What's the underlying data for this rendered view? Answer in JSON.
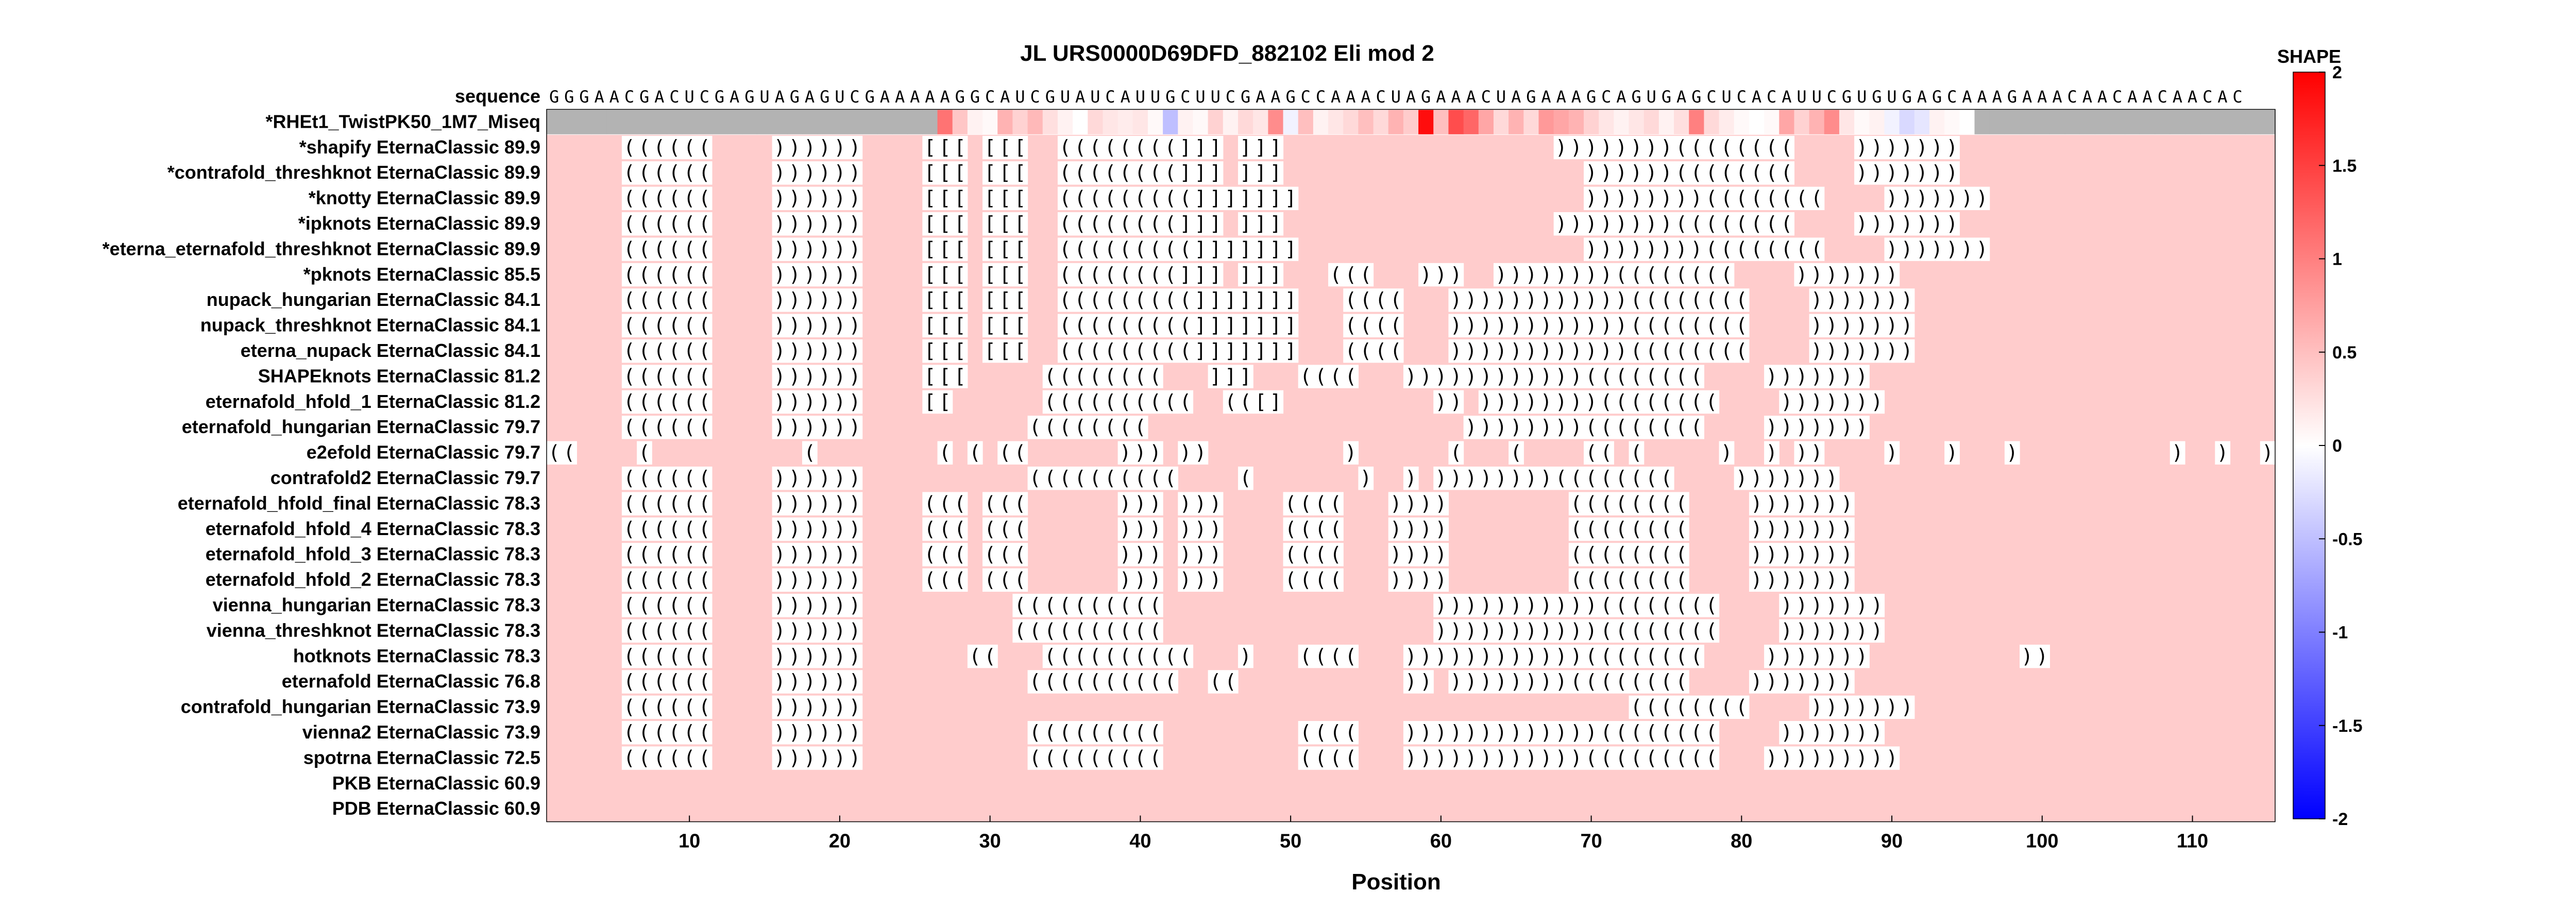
{
  "chart_data": {
    "type": "heatmap",
    "title": "JL URS0000D69DFD_882102 Eli mod 2",
    "xlabel": "Position",
    "x_range": [
      1,
      115
    ],
    "x_ticks": [
      10,
      20,
      30,
      40,
      50,
      60,
      70,
      80,
      90,
      100,
      110
    ],
    "sequence_label": "sequence",
    "sequence": "GGGAACGACUCGAGUAGAGUCGAAAAAGGCAUCGUAUCAUUGCUUCGAAGCCAAACUAGAAACUAGAAAGCAGUGAGCUCACAUUCGUGUGAGCAAAGAAACAACAACAACAC",
    "reactivity_row_label": "*RHEt1_TwistPK50_1M7_Miseq",
    "reactivity_data_range": [
      27,
      95
    ],
    "reactivity": [
      0.0,
      0.0,
      0.0,
      0.0,
      0.0,
      0.0,
      0.0,
      0.0,
      0.0,
      0.0,
      0.0,
      0.0,
      0.0,
      0.0,
      0.0,
      0.0,
      0.0,
      0.0,
      0.0,
      0.0,
      0.0,
      0.0,
      0.0,
      0.0,
      0.0,
      0.0,
      1.1,
      0.45,
      0.1,
      0.05,
      0.6,
      0.35,
      0.55,
      0.25,
      0.1,
      0.0,
      0.3,
      0.2,
      0.15,
      0.2,
      0.05,
      -0.5,
      0.1,
      0.05,
      0.35,
      0.1,
      0.3,
      0.2,
      0.9,
      -0.1,
      0.5,
      0.1,
      0.2,
      0.3,
      0.5,
      0.3,
      0.6,
      0.4,
      1.9,
      0.5,
      1.4,
      1.2,
      0.7,
      0.3,
      0.6,
      0.3,
      0.8,
      0.7,
      0.6,
      0.35,
      0.2,
      0.1,
      0.2,
      0.3,
      0.1,
      0.25,
      1.0,
      0.3,
      0.15,
      0.05,
      0.0,
      0.05,
      0.7,
      0.35,
      0.6,
      0.9,
      0.2,
      0.05,
      0.1,
      -0.1,
      -0.3,
      -0.2,
      0.1,
      0.05,
      0.0,
      0.0,
      0.0,
      0.0,
      0.0,
      0.0,
      0.0,
      0.0,
      0.0,
      0.0,
      0.0,
      0.0,
      0.0,
      0.0,
      0.0,
      0.0,
      0.0,
      0.0,
      0.0,
      0.0,
      0.0
    ],
    "structure_rows": [
      {
        "label": "*shapify EternaClassic",
        "score": "89.9",
        "structure": ".....((((((....))))))....[[[.[[[..((((((((]]].]]]..................))))))))((((((((....)))))))................................"
      },
      {
        "label": "*contrafold_threshknot EternaClassic",
        "score": "89.9",
        "structure": ".....((((((....))))))....[[[.[[[..((((((((]]].]]]....................))))))((((((((....)))))))................................"
      },
      {
        "label": "*knotty EternaClassic",
        "score": "89.9",
        "structure": ".....((((((....))))))....[[[.[[[..(((((((((]]]]]]]...................))))))))((((((((....)))))))................................"
      },
      {
        "label": "*ipknots EternaClassic",
        "score": "89.9",
        "structure": ".....((((((....))))))....[[[.[[[..((((((((]]].]]]..................))))))))((((((((....)))))))................................"
      },
      {
        "label": "*eterna_eternafold_threshknot EternaClassic",
        "score": "89.9",
        "structure": ".....((((((....))))))....[[[.[[[..(((((((((]]]]]]]...................))))))))((((((((....)))))))................................"
      },
      {
        "label": "*pknots EternaClassic",
        "score": "85.5",
        "structure": ".....((((((....))))))....[[[.[[[..((((((((]]].]]]...(((...)))..))))))))((((((((....)))))))................................"
      },
      {
        "label": "nupack_hungarian EternaClassic",
        "score": "84.1",
        "structure": ".....((((((....))))))....[[[.[[[..(((((((((]]]]]]]...((((...))))))))))))((((((((....)))))))................................"
      },
      {
        "label": "nupack_threshknot EternaClassic",
        "score": "84.1",
        "structure": ".....((((((....))))))....[[[.[[[..(((((((((]]]]]]]...((((...))))))))))))((((((((....)))))))................................"
      },
      {
        "label": "eterna_nupack EternaClassic",
        "score": "84.1",
        "structure": ".....((((((....))))))....[[[.[[[..(((((((((]]]]]]]...((((...))))))))))))((((((((....)))))))................................"
      },
      {
        "label": "SHAPEknots EternaClassic",
        "score": "81.2",
        "structure": ".....((((((....))))))....[[[.....((((((((...]]]...((((...))))))))))))((((((((....)))))))................................"
      },
      {
        "label": "eternafold_hfold_1 EternaClassic",
        "score": "81.2",
        "structure": ".....((((((....))))))....[[......((((((((((..(([]..........)).))))))))((((((((....)))))))................................"
      },
      {
        "label": "eternafold_hungarian EternaClassic",
        "score": "79.7",
        "structure": ".....((((((....))))))...........((((((((.....................))))))))((((((((....)))))))................................"
      },
      {
        "label": "e2efold EternaClassic",
        "score": "79.7",
        "structure": "((....(..........(........(.(.((......))).)).........)......(...(....((.(.....)..).))....)...)...)..........)..)..)"
      },
      {
        "label": "contrafold2 EternaClassic",
        "score": "79.7",
        "structure": ".....((((((....))))))...........((((((((((....(.......)..).))))))))((((((((....)))))))................................"
      },
      {
        "label": "eternafold_hfold_final EternaClassic",
        "score": "78.3",
        "structure": ".....((((((....))))))....(((.(((......))).)))....((((...))))........((((((((....)))))))................................"
      },
      {
        "label": "eternafold_hfold_4 EternaClassic",
        "score": "78.3",
        "structure": ".....((((((....))))))....(((.(((......))).)))....((((...))))........((((((((....)))))))................................"
      },
      {
        "label": "eternafold_hfold_3 EternaClassic",
        "score": "78.3",
        "structure": ".....((((((....))))))....(((.(((......))).)))....((((...))))........((((((((....)))))))................................"
      },
      {
        "label": "eternafold_hfold_2 EternaClassic",
        "score": "78.3",
        "structure": ".....((((((....))))))....(((.(((......))).)))....((((...))))........((((((((....)))))))................................"
      },
      {
        "label": "vienna_hungarian EternaClassic",
        "score": "78.3",
        "structure": ".....((((((....))))))..........((((((((((..................)))))))))))((((((((....)))))))................................"
      },
      {
        "label": "vienna_threshknot EternaClassic",
        "score": "78.3",
        "structure": ".....((((((....))))))..........((((((((((..................)))))))))))((((((((....)))))))................................"
      },
      {
        "label": "hotknots EternaClassic",
        "score": "78.3",
        "structure": ".....((((((....)))))).......((...((((((((((...)...((((...))))))))))))((((((((....)))))))..........))................."
      },
      {
        "label": "eternafold EternaClassic",
        "score": "76.8",
        "structure": ".....((((((....))))))...........((((((((((..((...........)).))))))))((((((((....)))))))................................"
      },
      {
        "label": "contrafold_hungarian EternaClassic",
        "score": "73.9",
        "structure": ".....((((((....))))))...................................................((((((((....)))))))................................"
      },
      {
        "label": "vienna2 EternaClassic",
        "score": "73.9",
        "structure": ".....((((((....))))))...........(((((((((.........((((...)))))))))))))((((((((....)))))))................................"
      },
      {
        "label": "spotrna EternaClassic",
        "score": "72.5",
        "structure": ".....((((((....))))))...........(((((((((.........((((...))))))))))))(((((((((...))))))))).............................."
      },
      {
        "label": "PKB EternaClassic",
        "score": "60.9",
        "structure": "..................................................................................................................."
      },
      {
        "label": "PDB EternaClassic",
        "score": "60.9",
        "structure": "..................................................................................................................."
      }
    ],
    "colorbar": {
      "title": "SHAPE",
      "range": [
        -2,
        2
      ],
      "ticks": [
        "2",
        "1.5",
        "1",
        "0.5",
        "0",
        "-0.5",
        "-1",
        "-1.5",
        "-2"
      ],
      "colors": {
        "low": "#0000ff",
        "mid": "#ffffff",
        "high": "#ff0000"
      }
    },
    "colors": {
      "base_fill": "#ffcccc",
      "no_data": "#b3b3b3",
      "char_bg": "#ffffff"
    }
  }
}
